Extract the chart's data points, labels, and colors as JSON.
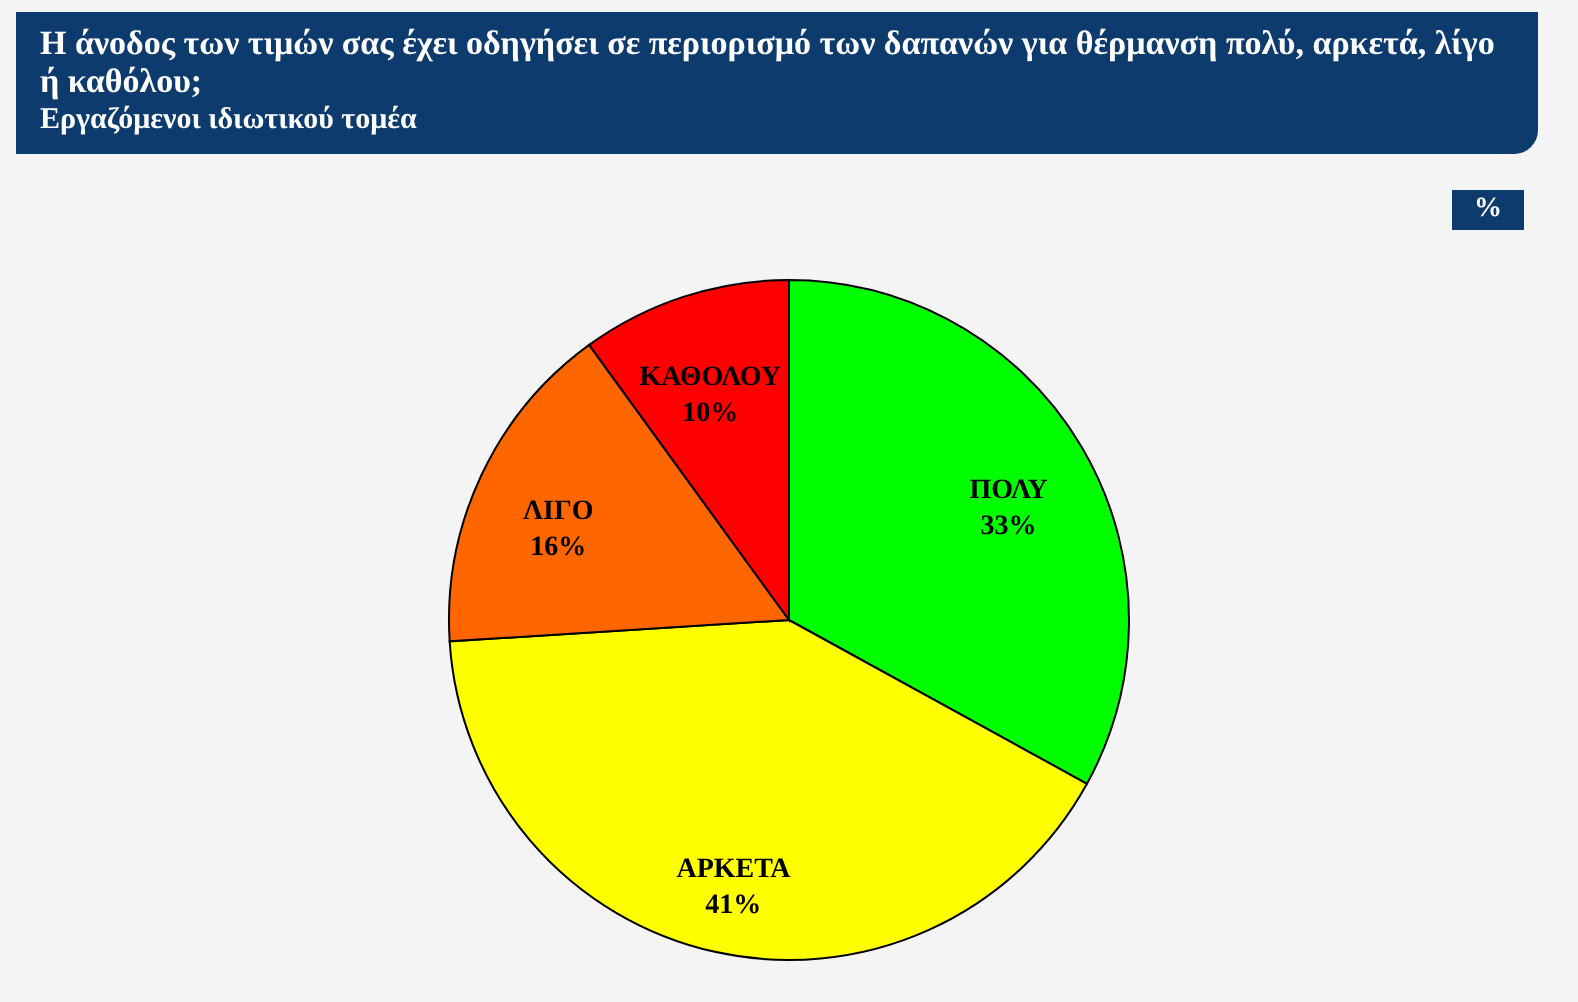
{
  "chart_data": {
    "type": "pie",
    "title": "Η άνοδος των τιμών σας έχει οδηγήσει σε περιορισμό των δαπανών για θέρμανση πολύ, αρκετά, λίγο ή καθόλου;",
    "subtitle": "Εργαζόμενοι ιδιωτικού τομέα",
    "annotations": [
      "%"
    ],
    "categories": [
      "ΠΟΛΥ",
      "ΑΡΚΕΤΑ",
      "ΛΙΓΟ",
      "ΚΑΘΟΛΟΥ"
    ],
    "values": [
      33,
      41,
      16,
      10
    ],
    "colors": [
      "#00ff00",
      "#ffff00",
      "#ff6600",
      "#ff0000"
    ],
    "value_labels": [
      "33%",
      "41%",
      "16%",
      "10%"
    ]
  }
}
